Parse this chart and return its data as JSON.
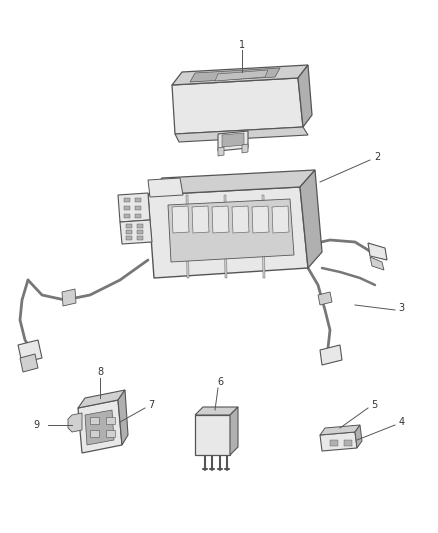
{
  "bg_color": "#ffffff",
  "line_color": "#555555",
  "thin_line": "#888888",
  "fig_width": 4.38,
  "fig_height": 5.33,
  "dpi": 100
}
